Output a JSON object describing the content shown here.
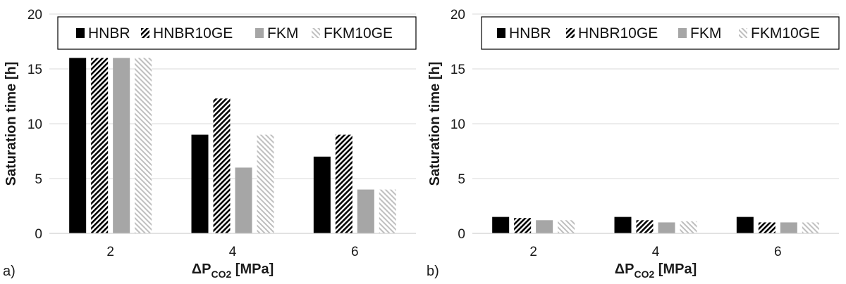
{
  "chart_data": [
    {
      "type": "bar",
      "panel_label": "a)",
      "categories": [
        "2",
        "4",
        "6"
      ],
      "series": [
        {
          "name": "HNBR",
          "values": [
            16,
            9,
            7
          ]
        },
        {
          "name": "HNBR10GE",
          "values": [
            16,
            12.3,
            9
          ]
        },
        {
          "name": "FKM",
          "values": [
            16,
            6,
            4
          ]
        },
        {
          "name": "FKM10GE",
          "values": [
            16,
            9,
            4
          ]
        }
      ],
      "xlabel": {
        "main": "ΔP",
        "sub": "CO2",
        "unit": " [MPa]"
      },
      "ylabel": "Saturation time [h]",
      "ylim": [
        0,
        20
      ],
      "yticks": [
        "0",
        "5",
        "10",
        "15",
        "20"
      ],
      "grid": true,
      "legend_position": "top"
    },
    {
      "type": "bar",
      "panel_label": "b)",
      "categories": [
        "2",
        "4",
        "6"
      ],
      "series": [
        {
          "name": "HNBR",
          "values": [
            1.5,
            1.5,
            1.5
          ]
        },
        {
          "name": "HNBR10GE",
          "values": [
            1.4,
            1.2,
            1.0
          ]
        },
        {
          "name": "FKM",
          "values": [
            1.2,
            1.0,
            1.0
          ]
        },
        {
          "name": "FKM10GE",
          "values": [
            1.2,
            1.1,
            1.0
          ]
        }
      ],
      "xlabel": {
        "main": "ΔP",
        "sub": "CO2",
        "unit": " [MPa]"
      },
      "ylabel": "Saturation time [h]",
      "ylim": [
        0,
        20
      ],
      "yticks": [
        "0",
        "5",
        "10",
        "15",
        "20"
      ],
      "grid": true,
      "legend_position": "top"
    }
  ],
  "series_styles": [
    {
      "fill": "#000000",
      "pattern": "solid"
    },
    {
      "fill": "#000000",
      "pattern": "dense-diagonal"
    },
    {
      "fill": "#a6a6a6",
      "pattern": "solid"
    },
    {
      "fill": "#bfbfbf",
      "pattern": "light-diagonal"
    }
  ]
}
